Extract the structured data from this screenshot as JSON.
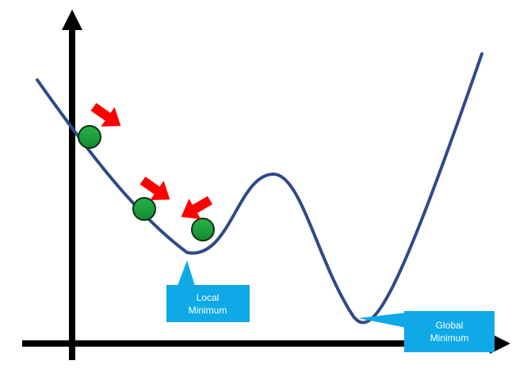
{
  "callouts": {
    "local": {
      "line1": "Local",
      "line2": "Minimum"
    },
    "global": {
      "line1": "Global",
      "line2": "Minimum"
    }
  },
  "colors": {
    "axis": "#000000",
    "curve": "#2f4a86",
    "ball": "#1a9a3a",
    "ball_outline": "#0b2e12",
    "arrow": "#ff0000",
    "callout_fill": "#0fa9e8"
  }
}
